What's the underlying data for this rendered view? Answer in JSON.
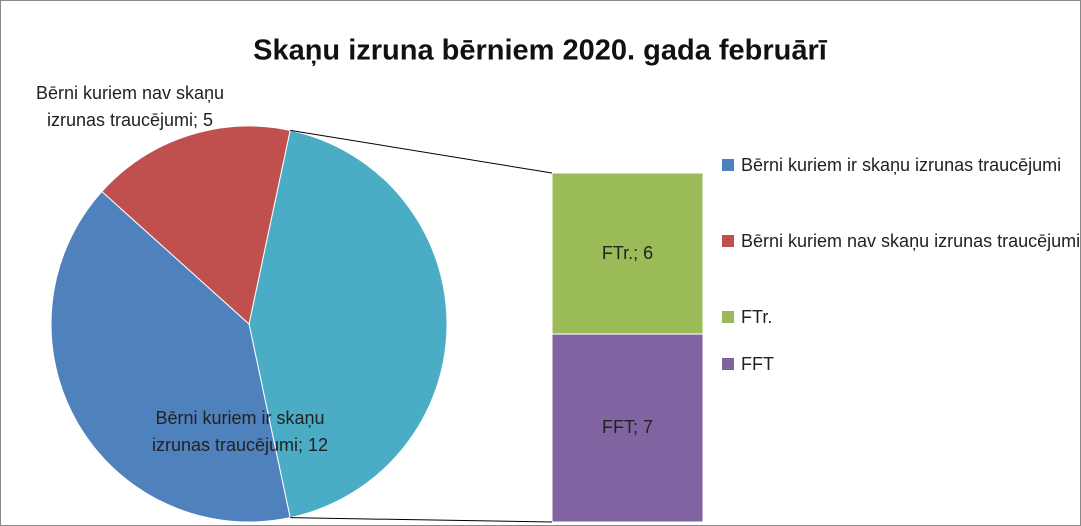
{
  "chart_data": {
    "type": "pie_bar",
    "title": "Skaņu izruna bērniem 2020. gada februārī",
    "pie": {
      "categories": [
        "Bērni kuriem ir skaņu izrunas traucējumi",
        "Bērni kuriem nav skaņu izrunas traucējumi"
      ],
      "values": [
        12,
        5
      ],
      "value_labels": [
        "Bērni kuriem ir skaņu izrunas traucējumi; 12",
        "Bērni kuriem nav skaņu izrunas traucējumi; 5"
      ],
      "colors": [
        "#4f81bd",
        "#c0504d"
      ]
    },
    "other_color": "#4bacc6",
    "bar": {
      "categories": [
        "FTr.",
        "FFT"
      ],
      "values": [
        6,
        7
      ],
      "value_labels": [
        "FTr.; 6",
        "FFT; 7"
      ],
      "colors": [
        "#9bbb59",
        "#8064a2"
      ]
    },
    "legend": "right"
  }
}
